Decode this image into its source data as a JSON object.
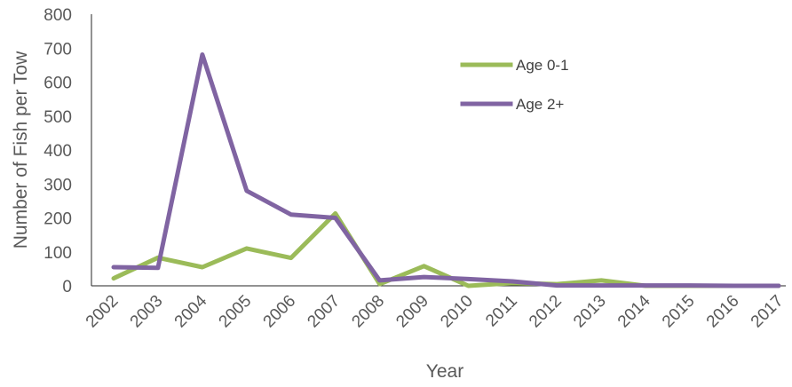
{
  "chart_data": {
    "type": "line",
    "title": "",
    "xlabel": "Year",
    "ylabel": "Number of Fish per Tow",
    "ylim": [
      0,
      800
    ],
    "yticks": [
      "0",
      "100",
      "200",
      "300",
      "400",
      "500",
      "600",
      "700",
      "800"
    ],
    "x": [
      "2002",
      "2003",
      "2004",
      "2005",
      "2006",
      "2007",
      "2008",
      "2009",
      "2010",
      "2011",
      "2012",
      "2013",
      "2014",
      "2015",
      "2016",
      "2017"
    ],
    "grid": false,
    "legend_position": "top-right",
    "series": [
      {
        "name": "Age 0-1",
        "color": "#9BBB59",
        "values": [
          22,
          83,
          55,
          110,
          82,
          213,
          5,
          58,
          0,
          8,
          5,
          16,
          0,
          0,
          0,
          0
        ]
      },
      {
        "name": "Age 2+",
        "color": "#8064A2",
        "values": [
          55,
          53,
          681,
          280,
          210,
          200,
          16,
          26,
          20,
          13,
          1,
          1,
          1,
          1,
          0,
          0
        ]
      }
    ]
  }
}
